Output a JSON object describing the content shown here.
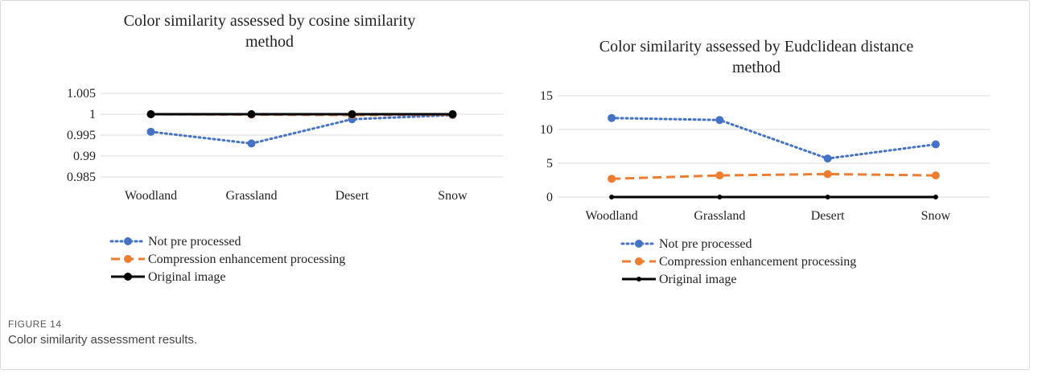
{
  "figure": {
    "label": "FIGURE 14",
    "caption": "Color similarity assessment results."
  },
  "colors": {
    "not_pre_processed": "#4472c4",
    "compression": "#ed7d31",
    "original": "#000000",
    "grid": "#d9d9d9"
  },
  "chart_data": [
    {
      "type": "line",
      "title": [
        "Color similarity assessed by cosine similarity",
        "method"
      ],
      "xlabel": "",
      "ylabel": "",
      "categories": [
        "Woodland",
        "Grassland",
        "Desert",
        "Snow"
      ],
      "ylim": [
        0.985,
        1.005
      ],
      "yticks": [
        "0.985",
        "0.99",
        "0.995",
        "1",
        "1.005"
      ],
      "yticks_values": [
        0.985,
        0.99,
        0.995,
        1,
        1.005
      ],
      "grid": true,
      "legend_position": "bottom",
      "series": [
        {
          "name": "Not pre processed",
          "values": [
            0.9958,
            0.993,
            0.9988,
            0.9998
          ],
          "style": "dotted",
          "color": "#4472c4"
        },
        {
          "name": "Compression enhancement processing",
          "values": [
            1.0,
            0.9999,
            0.9998,
            0.9999
          ],
          "style": "dashed",
          "color": "#ed7d31"
        },
        {
          "name": "Original image",
          "values": [
            1.0,
            1.0,
            1.0,
            1.0
          ],
          "style": "solid",
          "color": "#000000"
        }
      ]
    },
    {
      "type": "line",
      "title": [
        "Color similarity assessed by Eudclidean distance",
        "method"
      ],
      "xlabel": "",
      "ylabel": "",
      "categories": [
        "Woodland",
        "Grassland",
        "Desert",
        "Snow"
      ],
      "ylim": [
        0,
        15
      ],
      "yticks": [
        "0",
        "5",
        "10",
        "15"
      ],
      "yticks_values": [
        0,
        5,
        10,
        15
      ],
      "grid": true,
      "legend_position": "bottom",
      "series": [
        {
          "name": "Not pre processed",
          "values": [
            11.7,
            11.4,
            5.7,
            7.8
          ],
          "style": "dotted",
          "color": "#4472c4"
        },
        {
          "name": "Compression enhancement processing",
          "values": [
            2.7,
            3.2,
            3.4,
            3.2
          ],
          "style": "dashed",
          "color": "#ed7d31"
        },
        {
          "name": "Original image",
          "values": [
            0,
            0,
            0,
            0
          ],
          "style": "solid",
          "color": "#000000"
        }
      ]
    }
  ]
}
